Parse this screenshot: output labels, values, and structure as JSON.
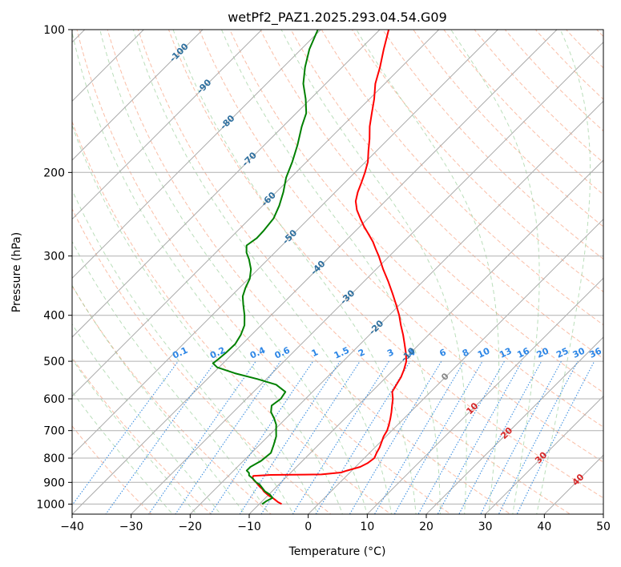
{
  "chart_data": {
    "type": "skew-t log-p diagram",
    "title": "wetPf2_PAZ1.2025.293.04.54.G09",
    "xlabel": "Temperature (°C)",
    "ylabel": "Pressure (hPa)",
    "xlim": [
      -40,
      50
    ],
    "ylim": [
      1050,
      100
    ],
    "x_ticks": [
      -40,
      -30,
      -20,
      -10,
      0,
      10,
      20,
      30,
      40,
      50
    ],
    "x_tick_labels": [
      "−40",
      "−30",
      "−20",
      "−10",
      "0",
      "10",
      "20",
      "30",
      "40",
      "50"
    ],
    "y_ticks": [
      100,
      200,
      300,
      400,
      500,
      600,
      700,
      800,
      900,
      1000
    ],
    "y_tick_labels": [
      "100",
      "200",
      "300",
      "400",
      "500",
      "600",
      "700",
      "800",
      "900",
      "1000"
    ],
    "isotherm_labels": [
      {
        "text": "-100",
        "T": -100,
        "p": 112
      },
      {
        "text": "-90",
        "T": -90,
        "p": 132
      },
      {
        "text": "-80",
        "T": -80,
        "p": 157
      },
      {
        "text": "-70",
        "T": -70,
        "p": 188
      },
      {
        "text": "-60",
        "T": -60,
        "p": 228
      },
      {
        "text": "-50",
        "T": -50,
        "p": 274
      },
      {
        "text": "-40",
        "T": -40,
        "p": 318
      },
      {
        "text": "-30",
        "T": -30,
        "p": 367
      },
      {
        "text": "-20",
        "T": -20,
        "p": 425
      },
      {
        "text": "-10",
        "T": -10,
        "p": 485
      },
      {
        "text": "0",
        "T": 0,
        "p": 540
      },
      {
        "text": "10",
        "T": 10,
        "p": 630
      },
      {
        "text": "20",
        "T": 20,
        "p": 710
      },
      {
        "text": "30",
        "T": 30,
        "p": 800
      },
      {
        "text": "40",
        "T": 40,
        "p": 890
      }
    ],
    "mixing_ratio_labels": [
      "0.1",
      "0.2",
      "0.4",
      "0.6",
      "1",
      "1.5",
      "2",
      "3",
      "4",
      "6",
      "8",
      "10",
      "13",
      "16",
      "20",
      "25",
      "30",
      "36"
    ],
    "mixing_ratio_values": [
      0.1,
      0.2,
      0.4,
      0.6,
      1,
      1.5,
      2,
      3,
      4,
      6,
      8,
      10,
      13,
      16,
      20,
      25,
      30,
      36
    ],
    "mixing_ratio_label_pressure": 490,
    "series": [
      {
        "name": "temperature",
        "color": "#ff0000",
        "points": [
          [
            1000,
            -6.2
          ],
          [
            990,
            -7.2
          ],
          [
            980,
            -8.0
          ],
          [
            970,
            -8.8
          ],
          [
            960,
            -9.8
          ],
          [
            950,
            -10.6
          ],
          [
            940,
            -11.4
          ],
          [
            930,
            -12.0
          ],
          [
            920,
            -12.8
          ],
          [
            910,
            -13.5
          ],
          [
            900,
            -14.2
          ],
          [
            890,
            -15.0
          ],
          [
            880,
            -15.6
          ],
          [
            872,
            -15.8
          ],
          [
            868,
            -13.0
          ],
          [
            866,
            -4.5
          ],
          [
            858,
            -1.5
          ],
          [
            850,
            -0.8
          ],
          [
            835,
            0.8
          ],
          [
            820,
            1.4
          ],
          [
            800,
            1.7
          ],
          [
            780,
            1.2
          ],
          [
            760,
            0.8
          ],
          [
            740,
            0.2
          ],
          [
            720,
            -0.4
          ],
          [
            700,
            -0.8
          ],
          [
            680,
            -1.5
          ],
          [
            660,
            -2.3
          ],
          [
            640,
            -3.2
          ],
          [
            620,
            -4.2
          ],
          [
            600,
            -5.2
          ],
          [
            580,
            -6.5
          ],
          [
            560,
            -7.0
          ],
          [
            540,
            -7.5
          ],
          [
            520,
            -8.3
          ],
          [
            500,
            -9.3
          ],
          [
            480,
            -10.8
          ],
          [
            460,
            -12.5
          ],
          [
            440,
            -14.3
          ],
          [
            420,
            -16.3
          ],
          [
            400,
            -18.3
          ],
          [
            380,
            -20.6
          ],
          [
            360,
            -23.1
          ],
          [
            340,
            -25.8
          ],
          [
            320,
            -28.8
          ],
          [
            300,
            -31.8
          ],
          [
            290,
            -33.5
          ],
          [
            280,
            -35.2
          ],
          [
            270,
            -37.2
          ],
          [
            260,
            -39.3
          ],
          [
            250,
            -41.3
          ],
          [
            240,
            -43.3
          ],
          [
            230,
            -45.0
          ],
          [
            220,
            -46.2
          ],
          [
            210,
            -47.2
          ],
          [
            200,
            -48.3
          ],
          [
            190,
            -49.6
          ],
          [
            180,
            -51.4
          ],
          [
            170,
            -53.2
          ],
          [
            160,
            -55.3
          ],
          [
            150,
            -57.2
          ],
          [
            140,
            -59.2
          ],
          [
            130,
            -61.6
          ],
          [
            120,
            -63.6
          ],
          [
            110,
            -66.0
          ],
          [
            100,
            -68.5
          ]
        ]
      },
      {
        "name": "dewpoint",
        "color": "#008000",
        "points": [
          [
            1000,
            -9.5
          ],
          [
            985,
            -9.3
          ],
          [
            970,
            -8.8
          ],
          [
            955,
            -9.8
          ],
          [
            940,
            -11.2
          ],
          [
            925,
            -12.2
          ],
          [
            910,
            -13.2
          ],
          [
            900,
            -14.2
          ],
          [
            885,
            -15.3
          ],
          [
            870,
            -16.6
          ],
          [
            860,
            -17.0
          ],
          [
            850,
            -17.8
          ],
          [
            835,
            -17.8
          ],
          [
            810,
            -17.0
          ],
          [
            780,
            -16.7
          ],
          [
            750,
            -17.6
          ],
          [
            720,
            -18.6
          ],
          [
            700,
            -19.6
          ],
          [
            680,
            -20.6
          ],
          [
            660,
            -22.0
          ],
          [
            640,
            -23.6
          ],
          [
            620,
            -24.6
          ],
          [
            600,
            -24.2
          ],
          [
            580,
            -24.6
          ],
          [
            560,
            -27.4
          ],
          [
            545,
            -31.5
          ],
          [
            530,
            -36.3
          ],
          [
            515,
            -40.3
          ],
          [
            505,
            -41.7
          ],
          [
            495,
            -41.5
          ],
          [
            480,
            -41.3
          ],
          [
            460,
            -41.2
          ],
          [
            440,
            -41.8
          ],
          [
            420,
            -42.8
          ],
          [
            400,
            -44.5
          ],
          [
            380,
            -46.5
          ],
          [
            365,
            -48.0
          ],
          [
            350,
            -49.0
          ],
          [
            335,
            -49.8
          ],
          [
            320,
            -51.2
          ],
          [
            305,
            -53.2
          ],
          [
            295,
            -54.8
          ],
          [
            285,
            -56.0
          ],
          [
            275,
            -55.5
          ],
          [
            265,
            -55.6
          ],
          [
            250,
            -56.0
          ],
          [
            235,
            -57.2
          ],
          [
            220,
            -58.8
          ],
          [
            205,
            -60.8
          ],
          [
            190,
            -62.4
          ],
          [
            175,
            -64.4
          ],
          [
            160,
            -66.8
          ],
          [
            150,
            -68.3
          ],
          [
            140,
            -70.8
          ],
          [
            130,
            -73.8
          ],
          [
            120,
            -76.3
          ],
          [
            110,
            -78.6
          ],
          [
            100,
            -80.5
          ]
        ]
      }
    ]
  }
}
